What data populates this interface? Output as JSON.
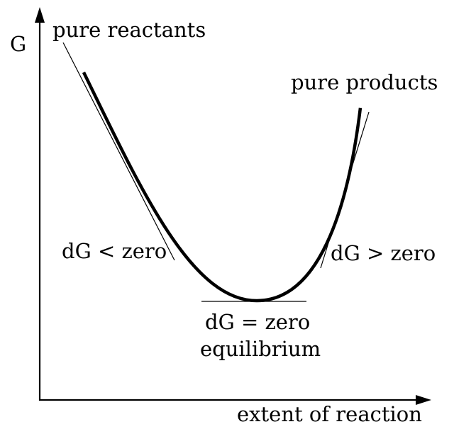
{
  "axes": {
    "y_label": "G",
    "x_label": "extent of reaction"
  },
  "annotations": {
    "start": "pure reactants",
    "end": "pure products",
    "left_slope": "dG < zero",
    "right_slope": "dG > zero",
    "minimum_line1": "dG = zero",
    "minimum_line2": "equilibrium"
  },
  "colors": {
    "ink": "#000000",
    "background": "#ffffff"
  }
}
